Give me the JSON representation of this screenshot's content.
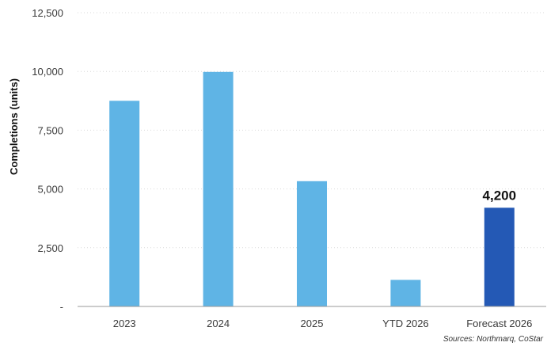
{
  "chart_data": {
    "type": "bar",
    "categories": [
      "2023",
      "2024",
      "2025",
      "YTD 2026",
      "Forecast 2026"
    ],
    "values": [
      8750,
      9980,
      5330,
      1130,
      4200
    ],
    "ylabel": "Completions (units)",
    "ylim": [
      0,
      12500
    ],
    "yticks": [
      0,
      2500,
      5000,
      7500,
      10000,
      12500
    ],
    "ytick_labels": [
      "-",
      "2,500",
      "5,000",
      "7,500",
      "10,000",
      "12,500"
    ],
    "data_labels": [
      {
        "category": "Forecast 2026",
        "text": "4,200"
      }
    ],
    "grid": "horizontal dotted",
    "colors": {
      "actual": "#5fb4e5",
      "forecast": "#2459b5",
      "axis": "#999999",
      "grid": "#d9d9d9"
    },
    "highlight_category": "Forecast 2026",
    "source": "Sources: Northmarq, CoStar"
  }
}
